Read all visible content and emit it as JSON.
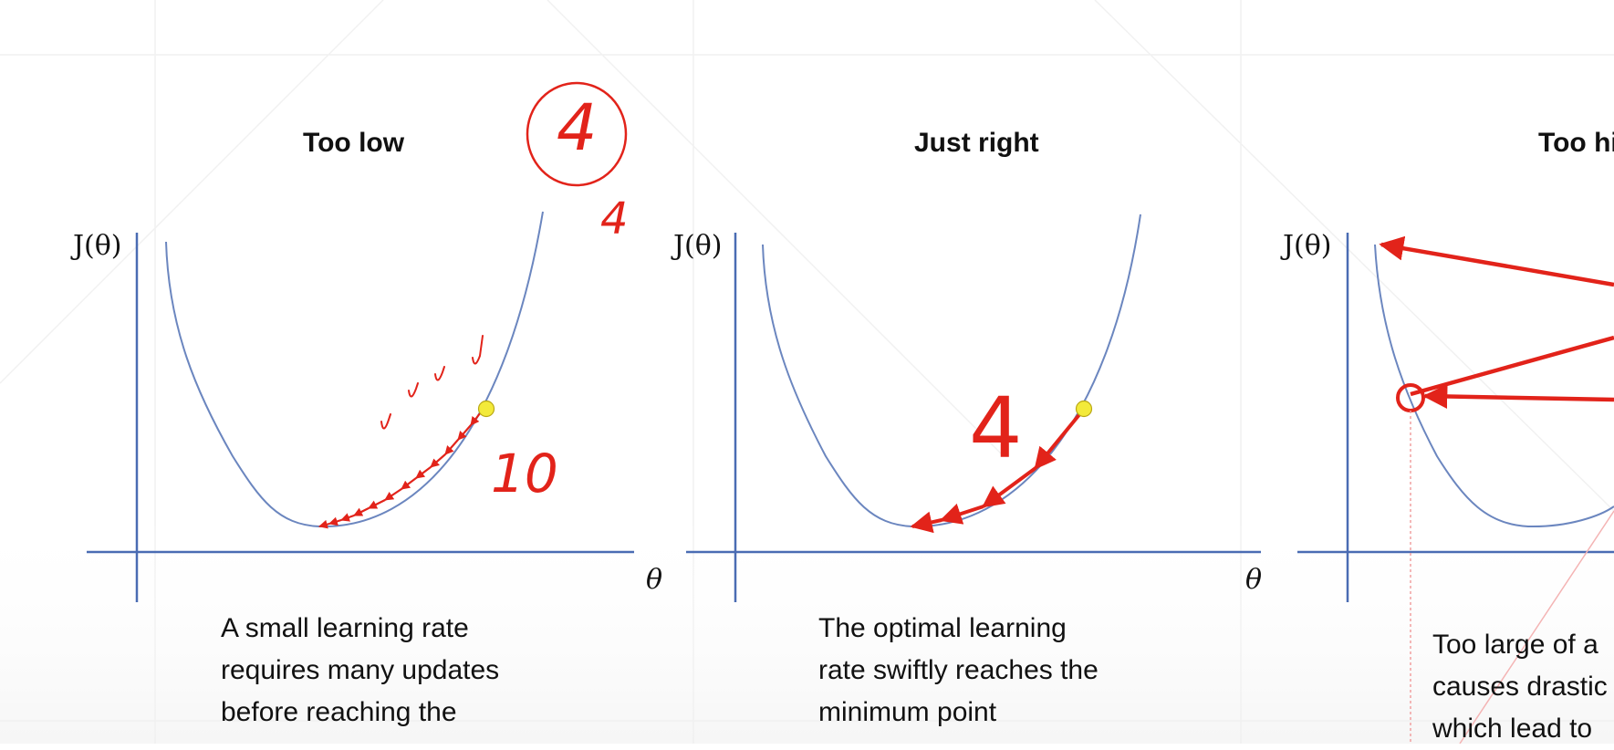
{
  "panels": [
    {
      "id": "low",
      "title": "Too low",
      "ylabel": "J(θ)",
      "xlabel": "θ",
      "caption": [
        "A small learning rate",
        "requires many updates",
        "before reaching the"
      ]
    },
    {
      "id": "right",
      "title": "Just right",
      "ylabel": "J(θ)",
      "xlabel": "θ",
      "caption": [
        "The optimal learning",
        "rate swiftly reaches the",
        "minimum point"
      ]
    },
    {
      "id": "high",
      "title": "Too high",
      "ylabel": "J(θ)",
      "caption": [
        "Too large of a",
        "causes drastic",
        "which lead to"
      ]
    }
  ],
  "annotations": {
    "circled_four": "4",
    "four_small": "4",
    "ten": "10",
    "four_right": "4"
  },
  "colors": {
    "axis": "#4a6cb3",
    "curve": "#6b86bf",
    "arrow": "#e2231a",
    "start_point": "#f3ea3a"
  }
}
